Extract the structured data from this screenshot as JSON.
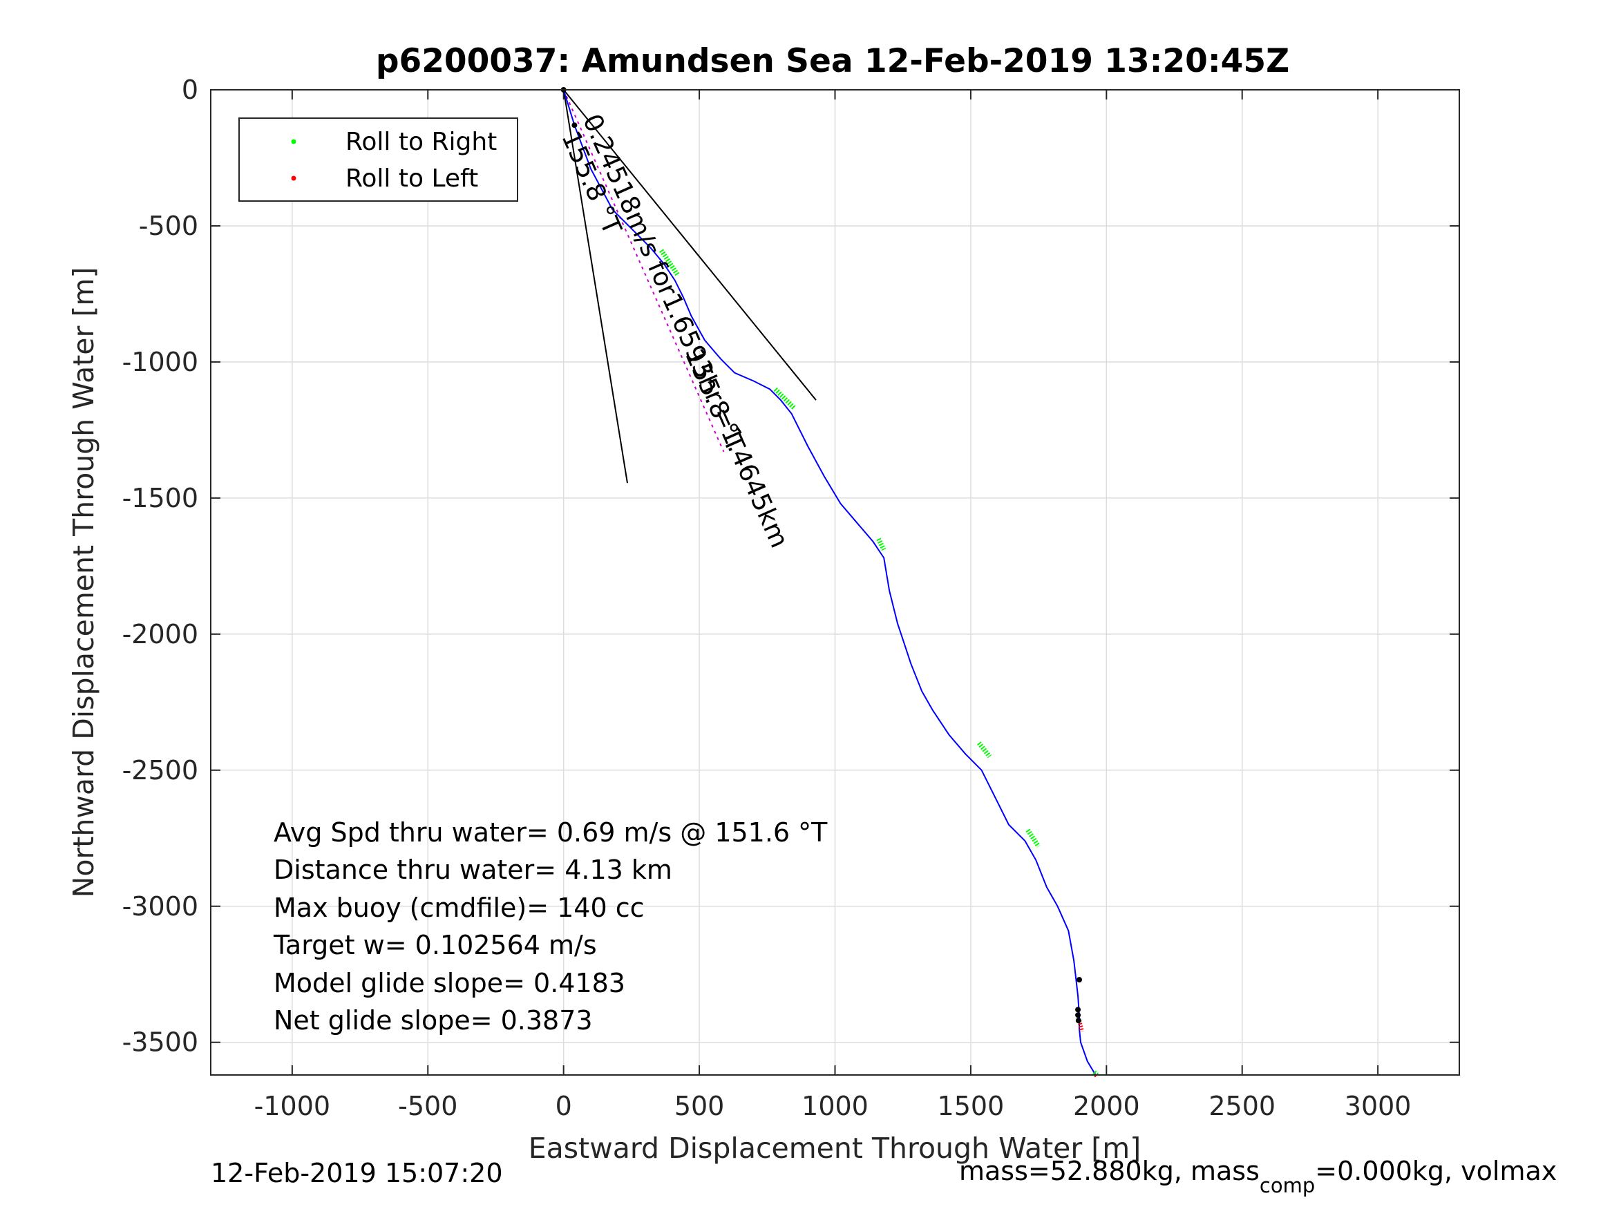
{
  "chart_data": {
    "type": "line",
    "title": "p6200037: Amundsen Sea 12-Feb-2019 13:20:45Z",
    "xlabel": "Eastward Displacement Through Water [m]",
    "ylabel": "Northward Displacement Through Water [m]",
    "xlim": [
      -1300,
      3300
    ],
    "ylim": [
      -3620,
      0
    ],
    "xticks": [
      -1000,
      -500,
      0,
      500,
      1000,
      1500,
      2000,
      2500,
      3000
    ],
    "yticks": [
      0,
      -500,
      -1000,
      -1500,
      -2000,
      -2500,
      -3000,
      -3500
    ],
    "xtick_labels": [
      "-1000",
      "-500",
      "0",
      "500",
      "1000",
      "1500",
      "2000",
      "2500",
      "3000"
    ],
    "ytick_labels": [
      "0",
      "-500",
      "-1000",
      "-1500",
      "-2000",
      "-2500",
      "-3000",
      "-3500"
    ],
    "grid": true,
    "legend_position": "top-left",
    "legend": [
      {
        "label": "Roll to Right",
        "color": "#00ff00"
      },
      {
        "label": "Roll to Left",
        "color": "#ff0000"
      }
    ],
    "track": {
      "color": "#0000ff",
      "x": [
        0,
        40,
        100,
        180,
        260,
        320,
        370,
        410,
        440,
        470,
        520,
        580,
        630,
        700,
        760,
        800,
        840,
        900,
        960,
        1020,
        1080,
        1140,
        1180,
        1200,
        1230,
        1280,
        1320,
        1360,
        1420,
        1480,
        1540,
        1570,
        1600,
        1640,
        1700,
        1740,
        1780,
        1820,
        1860,
        1880,
        1895,
        1900,
        1900,
        1905,
        1930,
        1960
      ],
      "y": [
        0,
        -130,
        -290,
        -440,
        -520,
        -580,
        -640,
        -700,
        -760,
        -830,
        -920,
        -990,
        -1040,
        -1070,
        -1100,
        -1140,
        -1190,
        -1310,
        -1420,
        -1520,
        -1590,
        -1660,
        -1720,
        -1840,
        -1960,
        -2110,
        -2210,
        -2280,
        -2370,
        -2440,
        -2500,
        -2560,
        -2620,
        -2700,
        -2760,
        -2830,
        -2930,
        -3000,
        -3090,
        -3200,
        -3330,
        -3400,
        -3450,
        -3500,
        -3570,
        -3620
      ]
    },
    "roll_right_segments": [
      {
        "x": [
          360,
          420
        ],
        "y": [
          -590,
          -680
        ]
      },
      {
        "x": [
          780,
          850
        ],
        "y": [
          -1100,
          -1170
        ]
      },
      {
        "x": [
          1160,
          1180
        ],
        "y": [
          -1650,
          -1690
        ]
      },
      {
        "x": [
          1530,
          1570
        ],
        "y": [
          -2400,
          -2450
        ]
      },
      {
        "x": [
          1710,
          1750
        ],
        "y": [
          -2720,
          -2780
        ]
      },
      {
        "x": [
          1955,
          1965
        ],
        "y": [
          -3610,
          -3620
        ]
      }
    ],
    "roll_left_segments": [
      {
        "x": [
          1900,
          1910
        ],
        "y": [
          -3420,
          -3460
        ]
      },
      {
        "x": [
          1960,
          1965
        ],
        "y": [
          -3620,
          -3625
        ]
      }
    ],
    "black_points": {
      "x": [
        0,
        40,
        1900,
        1895,
        1895,
        1897
      ],
      "y": [
        0,
        -130,
        -3270,
        -3380,
        -3400,
        -3420
      ]
    },
    "heading_lines": [
      {
        "x": [
          0,
          930
        ],
        "y": [
          0,
          -1140
        ]
      },
      {
        "x": [
          0,
          235
        ],
        "y": [
          0,
          -1445
        ]
      }
    ],
    "current_line": {
      "x": [
        0,
        590
      ],
      "y": [
        0,
        -1330
      ],
      "color": "#cc00cc"
    },
    "annotations": {
      "current_label": "0.24518m/s for1.6593hr =1.4645km",
      "heading_label_1": "155.8 °T",
      "heading_label_2": "155.8 °T"
    },
    "stats_lines": [
      "Avg Spd thru water=  0.69 m/s @ 151.6 °T",
      "Distance thru water=  4.13 km",
      "Max buoy (cmdfile)= 140 cc",
      "Target w= 0.102564 m/s",
      "Model glide slope= 0.4183",
      "Net glide slope= 0.3873"
    ]
  },
  "footer": {
    "timestamp": "12-Feb-2019 15:07:20",
    "mass_prefix": "mass=52.880kg, mass",
    "mass_sub": "comp",
    "mass_suffix": "=0.000kg, volmax"
  }
}
